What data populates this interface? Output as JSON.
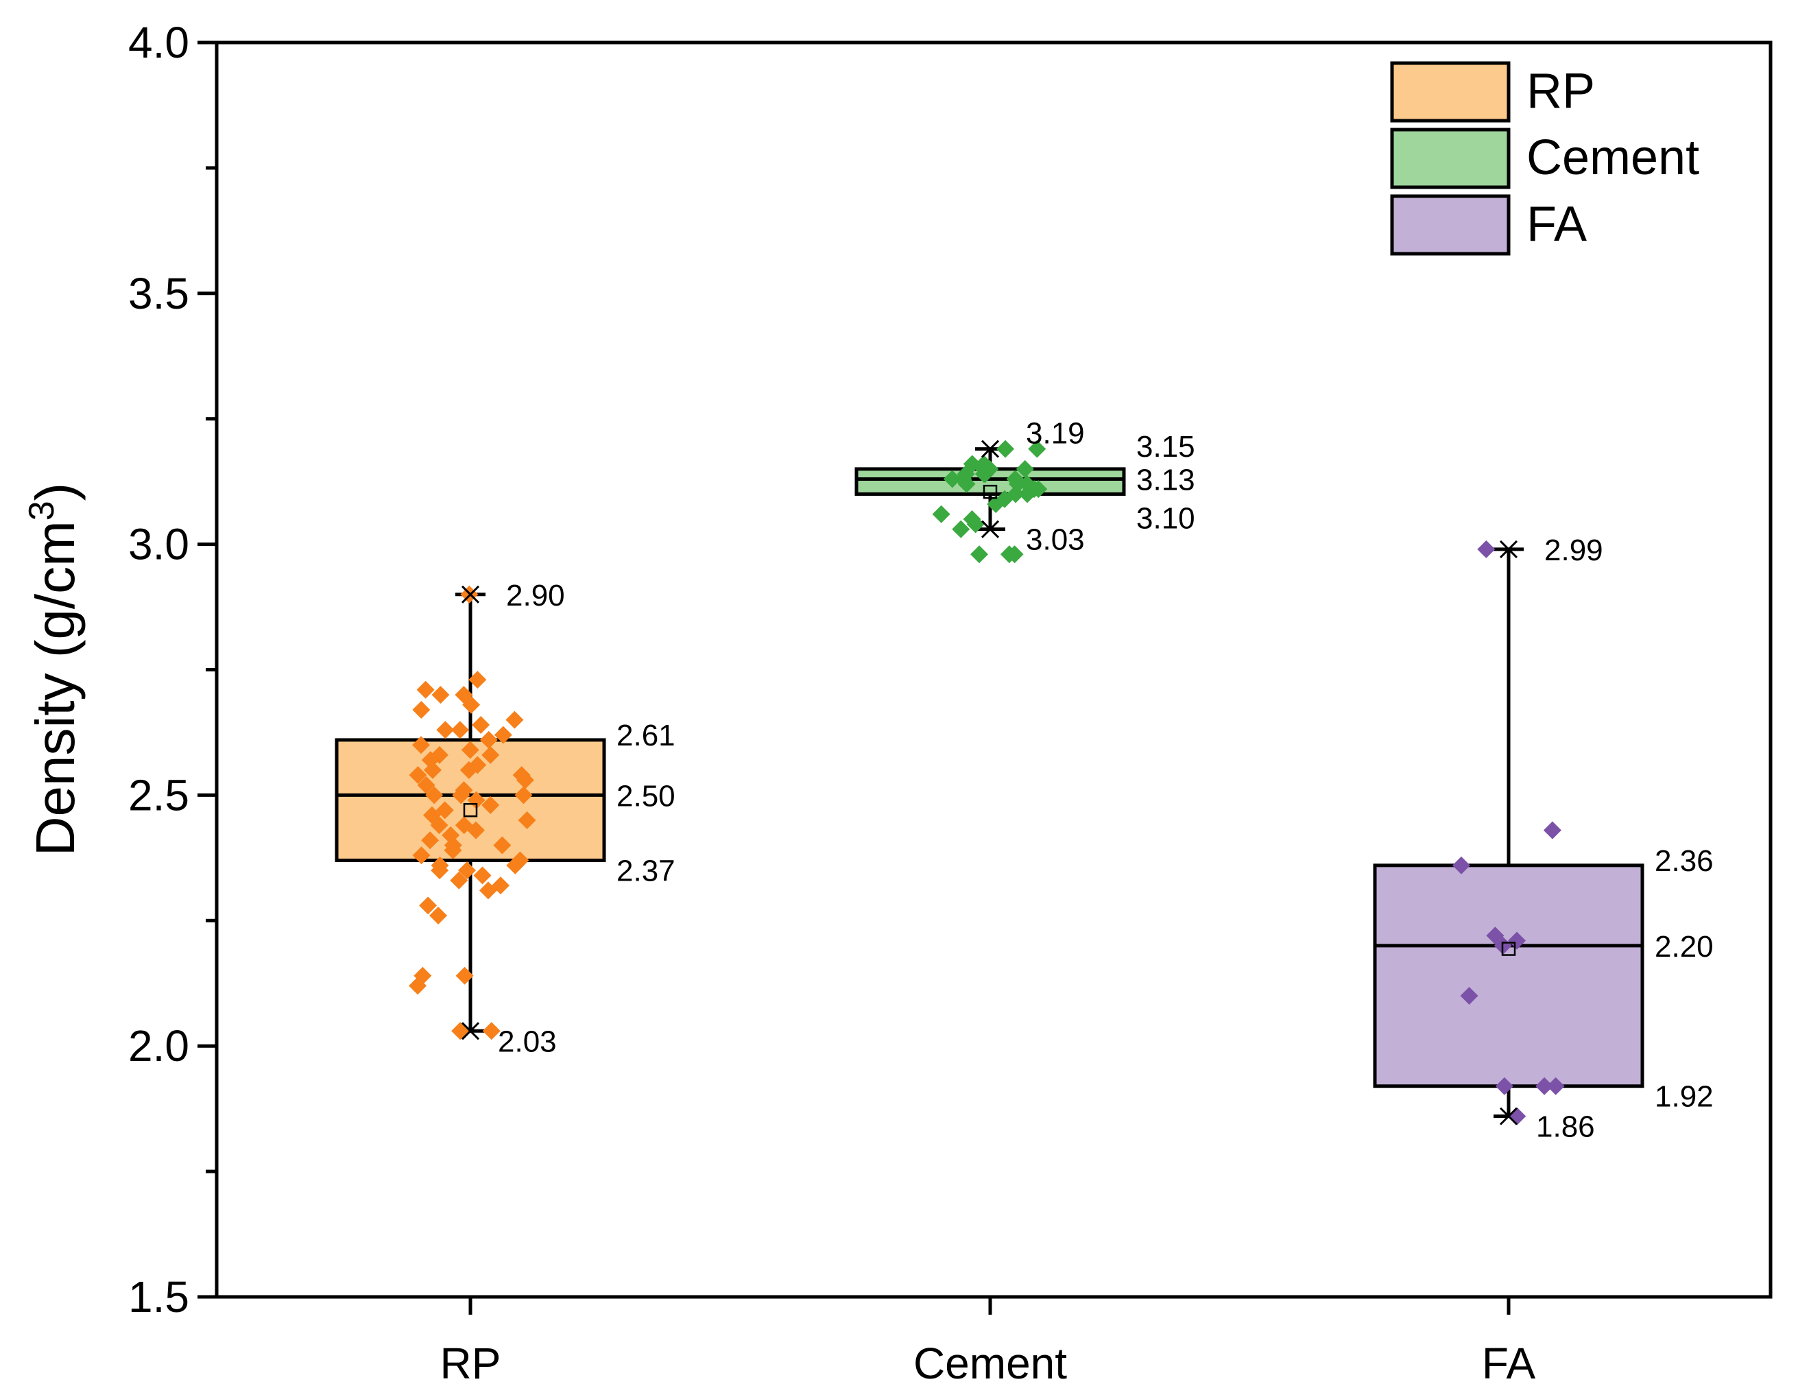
{
  "chart_data": {
    "type": "box",
    "ylabel": "Density (g/cm3)",
    "ylabel_parts": {
      "main": "Density (g/cm",
      "sup": "3",
      "close": ")"
    },
    "ylim": [
      1.5,
      4.0
    ],
    "yticks": [
      1.5,
      2.0,
      2.5,
      3.0,
      3.5,
      4.0
    ],
    "ytick_labels": [
      "1.5",
      "2.0",
      "2.5",
      "3.0",
      "3.5",
      "4.0"
    ],
    "categories": [
      "RP",
      "Cement",
      "FA"
    ],
    "legend": {
      "position": "top-right",
      "entries": [
        "RP",
        "Cement",
        "FA"
      ]
    },
    "series": [
      {
        "name": "RP",
        "color_fill": "#fcca8c",
        "color_points": "#f7801a",
        "max": 2.9,
        "q3": 2.61,
        "median": 2.5,
        "q1": 2.37,
        "min": 2.03,
        "labels": {
          "max": "2.90",
          "q3": "2.61",
          "median": "2.50",
          "q1": "2.37",
          "min": "2.03"
        },
        "points": [
          2.9,
          2.73,
          2.71,
          2.7,
          2.7,
          2.68,
          2.67,
          2.65,
          2.64,
          2.63,
          2.63,
          2.62,
          2.61,
          2.6,
          2.59,
          2.58,
          2.58,
          2.57,
          2.56,
          2.55,
          2.55,
          2.54,
          2.54,
          2.53,
          2.52,
          2.51,
          2.5,
          2.5,
          2.5,
          2.49,
          2.48,
          2.47,
          2.46,
          2.45,
          2.44,
          2.44,
          2.43,
          2.42,
          2.41,
          2.4,
          2.4,
          2.39,
          2.38,
          2.37,
          2.36,
          2.36,
          2.35,
          2.35,
          2.34,
          2.33,
          2.32,
          2.31,
          2.28,
          2.26,
          2.14,
          2.14,
          2.12,
          2.03,
          2.03
        ]
      },
      {
        "name": "Cement",
        "color_fill": "#9fd69c",
        "color_points": "#3aa93f",
        "max": 3.19,
        "q3": 3.15,
        "median": 3.13,
        "q1": 3.1,
        "min": 3.03,
        "labels": {
          "max": "3.19",
          "q3": "3.15",
          "median": "3.13",
          "q1": "3.10",
          "min": "3.03"
        },
        "points": [
          3.19,
          3.19,
          3.16,
          3.16,
          3.15,
          3.15,
          3.15,
          3.14,
          3.14,
          3.14,
          3.13,
          3.13,
          3.13,
          3.12,
          3.12,
          3.12,
          3.11,
          3.11,
          3.1,
          3.1,
          3.09,
          3.08,
          3.06,
          3.05,
          3.04,
          3.03,
          2.98,
          2.98,
          2.98
        ]
      },
      {
        "name": "FA",
        "color_fill": "#c2b0d6",
        "color_points": "#7c51a8",
        "max": 2.99,
        "q3": 2.36,
        "median": 2.2,
        "q1": 1.92,
        "min": 1.86,
        "labels": {
          "max": "2.99",
          "q3": "2.36",
          "median": "2.20",
          "q1": "1.92",
          "min": "1.86"
        },
        "points": [
          2.99,
          2.43,
          2.36,
          2.22,
          2.21,
          2.2,
          2.1,
          1.92,
          1.92,
          1.92,
          1.86
        ]
      }
    ]
  }
}
